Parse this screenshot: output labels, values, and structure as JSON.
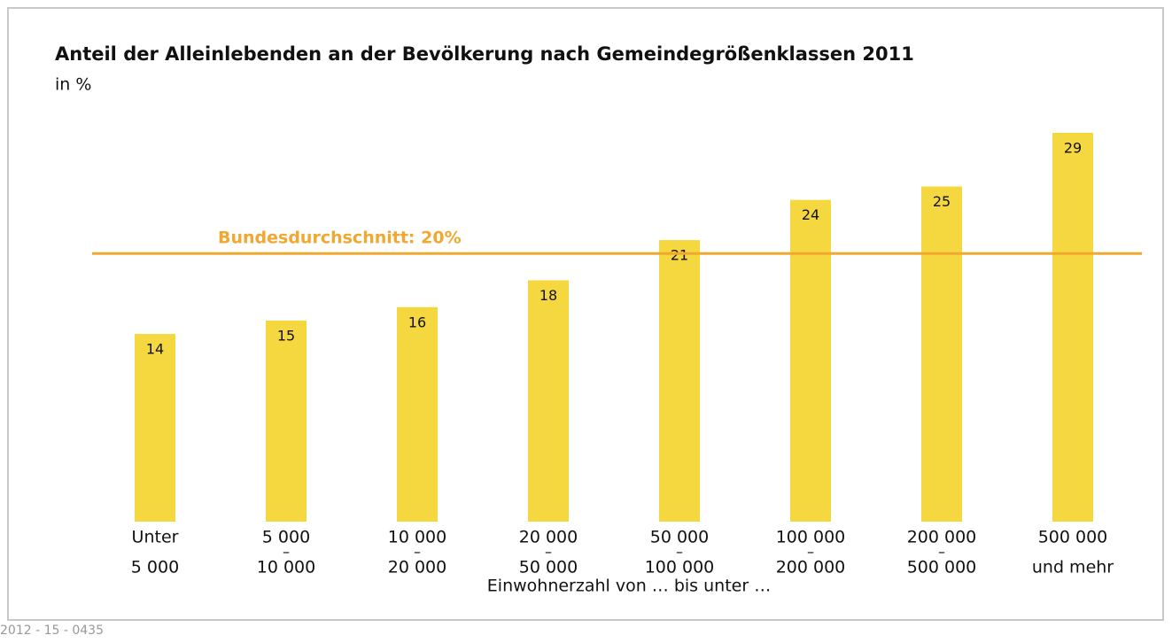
{
  "chart_data": {
    "type": "bar",
    "title": "Anteil der Alleinlebenden an der Bevölkerung nach Gemeindegrößenklassen 2011",
    "subtitle": "in %",
    "categories": [
      [
        "Unter",
        "5 000"
      ],
      [
        "5 000",
        "–",
        "10 000"
      ],
      [
        "10 000",
        "–",
        "20 000"
      ],
      [
        "20 000",
        "–",
        "50 000"
      ],
      [
        "50 000",
        "–",
        "100 000"
      ],
      [
        "100 000",
        "–",
        "200 000"
      ],
      [
        "200 000",
        "–",
        "500 000"
      ],
      [
        "500 000",
        "und mehr"
      ]
    ],
    "values": [
      14,
      15,
      16,
      18,
      21,
      24,
      25,
      29
    ],
    "color": "#f5d73f",
    "ylim": [
      0,
      29
    ],
    "reference_line": {
      "value": 20,
      "label": "Bundesdurchschnitt: 20%",
      "color": "#f0a830"
    },
    "x_label": "Einwohnerzahl von … bis unter …",
    "source": "2012 - 15 - 0435"
  }
}
